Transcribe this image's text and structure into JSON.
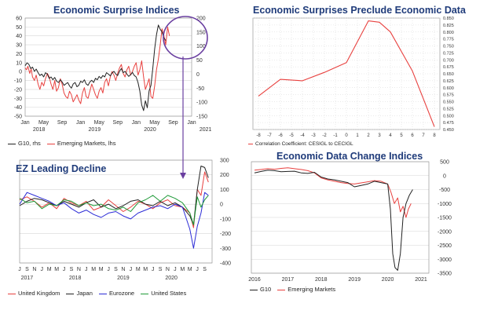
{
  "colors": {
    "title": "#1f3b7a",
    "red": "#e8413f",
    "black": "#222222",
    "blue": "#2b2bd6",
    "green": "#1f9a38",
    "purple": "#6a3fa0",
    "grid": "#d6d6d6"
  },
  "chart_data": [
    {
      "id": "p1",
      "type": "line",
      "title": "Economic Surprise Indices",
      "x_ticks": [
        "Jan",
        "May",
        "Sep",
        "Jan",
        "May",
        "Sep",
        "Jan",
        "May",
        "Sep",
        "Jan"
      ],
      "x_years": [
        "2018",
        "2019",
        "2020",
        "2021"
      ],
      "y_left_ticks": [
        60,
        50,
        40,
        30,
        20,
        10,
        0,
        -10,
        -20,
        -30,
        -40,
        -50
      ],
      "y_right_ticks": [
        200,
        150,
        100,
        50,
        0,
        -50,
        -100,
        -150
      ],
      "ylim_left": [
        -50,
        60
      ],
      "ylim_right": [
        -150,
        200
      ],
      "grid": true,
      "legend": [
        {
          "label": "G10, rhs",
          "color": "#222222"
        },
        {
          "label": "Emerging Markets, lhs",
          "color": "#e8413f"
        }
      ],
      "series": [
        {
          "name": "Emerging Markets, lhs",
          "axis": "left",
          "color": "#e8413f",
          "x": [
            0,
            0.3,
            0.6,
            1,
            1.3,
            1.6,
            2,
            2.4,
            2.8,
            3.2,
            3.6,
            4,
            4.4,
            4.8,
            5.2,
            5.6,
            6,
            6.4,
            6.8,
            7.2,
            7.6,
            8,
            8.4,
            8.8,
            9.2,
            9.6,
            10,
            10.4,
            10.8,
            11.2,
            11.6,
            12,
            12.4,
            12.8,
            13.2,
            13.6,
            14,
            14.4,
            14.8,
            15.2,
            15.6,
            16,
            16.4,
            16.8,
            17.2,
            17.6,
            18,
            18.4,
            18.8,
            19.2,
            19.6,
            20,
            20.4,
            20.8,
            21.2,
            21.6,
            22,
            22.4,
            22.8,
            23.2,
            23.6,
            24,
            24.4,
            24.8,
            25.2,
            25.6,
            26,
            26.4,
            26.8,
            27.2,
            27.6,
            28,
            28.4,
            28.8,
            29.2,
            29.6,
            30,
            30.4,
            30.8,
            31.2
          ],
          "y": [
            4,
            2,
            6,
            -2,
            3,
            -6,
            -10,
            -4,
            -14,
            -20,
            -12,
            -16,
            -8,
            -2,
            -6,
            -14,
            -20,
            -10,
            -22,
            -18,
            -8,
            -14,
            -24,
            -28,
            -30,
            -22,
            -26,
            -34,
            -30,
            -26,
            -32,
            -36,
            -24,
            -18,
            -28,
            -30,
            -22,
            -14,
            -20,
            -26,
            -30,
            -22,
            -18,
            -24,
            -12,
            -8,
            -16,
            -6,
            0,
            -4,
            -10,
            -2,
            4,
            8,
            -2,
            -6,
            2,
            6,
            -4,
            0,
            6,
            10,
            -4,
            2,
            12,
            -6,
            -20,
            -14,
            -8,
            -28,
            -30,
            -16,
            2,
            14,
            30,
            48,
            40,
            30,
            50,
            40
          ]
        },
        {
          "name": "G10, rhs",
          "axis": "right",
          "color": "#222222",
          "x": [
            0,
            0.4,
            0.8,
            1.2,
            1.6,
            2,
            2.4,
            2.8,
            3.2,
            3.6,
            4,
            4.4,
            4.8,
            5.2,
            5.6,
            6,
            6.4,
            6.8,
            7.2,
            7.6,
            8,
            8.4,
            8.8,
            9.2,
            9.6,
            10,
            10.4,
            10.8,
            11.2,
            11.6,
            12,
            12.4,
            12.8,
            13.2,
            13.6,
            14,
            14.4,
            14.8,
            15.2,
            15.6,
            16,
            16.4,
            16.8,
            17.2,
            17.6,
            18,
            18.4,
            18.8,
            19.2,
            19.6,
            20,
            20.4,
            20.8,
            21.2,
            21.6,
            22,
            22.4,
            22.8,
            23.2,
            23.6,
            24,
            24.4,
            24.8,
            25.2,
            25.6,
            26,
            26.4,
            26.8,
            27.2,
            27.6,
            28,
            28.4,
            28.8,
            29.2,
            29.6,
            30,
            30.4
          ],
          "y": [
            30,
            40,
            35,
            20,
            25,
            10,
            18,
            5,
            -5,
            0,
            -10,
            5,
            0,
            -15,
            -10,
            -20,
            -12,
            -25,
            -30,
            -20,
            -28,
            -40,
            -35,
            -30,
            -42,
            -50,
            -35,
            -30,
            -45,
            -40,
            -25,
            -30,
            -20,
            -35,
            -40,
            -28,
            -22,
            -30,
            -15,
            -20,
            -8,
            -15,
            -5,
            -10,
            5,
            0,
            -6,
            4,
            10,
            0,
            -5,
            10,
            20,
            5,
            10,
            0,
            -8,
            -2,
            6,
            -5,
            -10,
            -30,
            -60,
            -110,
            -130,
            -95,
            -120,
            -60,
            -40,
            20,
            90,
            140,
            175,
            160,
            150,
            130,
            120
          ]
        }
      ]
    },
    {
      "id": "p2",
      "type": "line",
      "title": "Economic Surprises Preclude Economic Data",
      "x_ticks": [
        "-8",
        "-7",
        "-6",
        "-5",
        "-4",
        "-3",
        "-2",
        "-1",
        "0",
        "1",
        "2",
        "3",
        "4",
        "5",
        "6",
        "7",
        "8"
      ],
      "y_ticks": [
        "0.850",
        "0.825",
        "0.800",
        "0.775",
        "0.750",
        "0.725",
        "0.700",
        "0.675",
        "0.650",
        "0.625",
        "0.600",
        "0.575",
        "0.550",
        "0.525",
        "0.500",
        "0.475",
        "0.450"
      ],
      "ylim": [
        0.45,
        0.85
      ],
      "grid": false,
      "legend": [
        {
          "label": "Correlation Coefficient: CESIGL to CECIGL",
          "color": "#e8413f"
        }
      ],
      "series": [
        {
          "name": "Correlation Coefficient: CESIGL to CECIGL",
          "color": "#e8413f",
          "x": [
            -8,
            -6,
            -4,
            -2,
            0,
            2,
            3,
            4,
            6,
            8
          ],
          "y": [
            0.57,
            0.63,
            0.625,
            0.655,
            0.69,
            0.84,
            0.835,
            0.8,
            0.66,
            0.46
          ]
        }
      ]
    },
    {
      "id": "p3",
      "type": "line",
      "title": "EZ Leading Decline",
      "x_ticks": [
        "J",
        "S",
        "N",
        "J",
        "M",
        "M",
        "J",
        "S",
        "N",
        "J",
        "M",
        "M",
        "J",
        "S",
        "N",
        "J",
        "M",
        "M",
        "J",
        "S",
        "N",
        "J",
        "M",
        "M",
        "J",
        "S"
      ],
      "x_years": [
        "2017",
        "2018",
        "2019",
        "2020"
      ],
      "y_ticks": [
        300,
        200,
        100,
        0,
        -100,
        -200,
        -300,
        -400
      ],
      "ylim": [
        -400,
        300
      ],
      "grid": true,
      "legend": [
        {
          "label": "United Kingdom",
          "color": "#e8413f"
        },
        {
          "label": "Japan",
          "color": "#222222"
        },
        {
          "label": "Eurozone",
          "color": "#2b2bd6"
        },
        {
          "label": "United States",
          "color": "#1f9a38"
        }
      ],
      "series": [
        {
          "name": "United Kingdom",
          "color": "#e8413f",
          "x": [
            0,
            1,
            2,
            3,
            4,
            5,
            6,
            7,
            8,
            9,
            10,
            11,
            12,
            13,
            14,
            15,
            16,
            17,
            18,
            19,
            20,
            21,
            22,
            23,
            23.5,
            24,
            24.5,
            25,
            25.5
          ],
          "y": [
            30,
            50,
            20,
            -20,
            10,
            -30,
            40,
            10,
            -10,
            20,
            -40,
            -20,
            30,
            -10,
            -50,
            -20,
            20,
            0,
            -30,
            10,
            30,
            -10,
            -20,
            -60,
            -160,
            100,
            60,
            220,
            150
          ]
        },
        {
          "name": "Japan",
          "color": "#222222",
          "x": [
            0,
            1,
            2,
            3,
            4,
            5,
            6,
            7,
            8,
            9,
            10,
            11,
            12,
            13,
            14,
            15,
            16,
            17,
            18,
            19,
            20,
            21,
            22,
            23,
            23.5,
            24,
            24.5,
            25,
            25.5
          ],
          "y": [
            -10,
            20,
            40,
            30,
            10,
            -10,
            20,
            0,
            -20,
            10,
            30,
            -20,
            0,
            -30,
            -10,
            20,
            30,
            0,
            -10,
            20,
            -10,
            10,
            -20,
            -80,
            -140,
            100,
            260,
            250,
            180
          ]
        },
        {
          "name": "Eurozone",
          "color": "#2b2bd6",
          "x": [
            0,
            1,
            2,
            3,
            4,
            5,
            6,
            7,
            8,
            9,
            10,
            11,
            12,
            13,
            14,
            15,
            16,
            17,
            18,
            19,
            20,
            21,
            22,
            23,
            23.5,
            24,
            24.5,
            25,
            25.5
          ],
          "y": [
            0,
            80,
            60,
            40,
            20,
            -10,
            10,
            -30,
            -60,
            -40,
            -70,
            -90,
            -60,
            -50,
            -80,
            -100,
            -60,
            -40,
            -20,
            -10,
            -30,
            0,
            -20,
            -170,
            -300,
            -150,
            -60,
            80,
            60
          ]
        },
        {
          "name": "United States",
          "color": "#1f9a38",
          "x": [
            0,
            1,
            2,
            3,
            4,
            5,
            6,
            7,
            8,
            9,
            10,
            11,
            12,
            13,
            14,
            15,
            16,
            17,
            18,
            19,
            20,
            21,
            22,
            23,
            23.5,
            24,
            24.5,
            25,
            25.5
          ],
          "y": [
            40,
            10,
            20,
            -30,
            0,
            -10,
            30,
            20,
            -10,
            10,
            -10,
            0,
            -30,
            -40,
            -20,
            -50,
            10,
            30,
            60,
            20,
            60,
            40,
            10,
            -60,
            -140,
            50,
            -20,
            30,
            60
          ]
        }
      ]
    },
    {
      "id": "p4",
      "type": "line",
      "title": "Economic Data Change Indices",
      "x_ticks": [
        "2016",
        "2017",
        "2018",
        "2019",
        "2020",
        "2021"
      ],
      "y_ticks": [
        500,
        0,
        -500,
        -1000,
        -1500,
        -2000,
        -2500,
        -3000,
        -3500
      ],
      "ylim": [
        -3500,
        500
      ],
      "grid": true,
      "legend": [
        {
          "label": "G10",
          "color": "#222222"
        },
        {
          "label": "Emerging Markets",
          "color": "#e8413f"
        }
      ],
      "series": [
        {
          "name": "G10",
          "color": "#222222",
          "x": [
            2016.0,
            2016.2,
            2016.4,
            2016.6,
            2016.8,
            2017.0,
            2017.2,
            2017.4,
            2017.6,
            2017.8,
            2018.0,
            2018.2,
            2018.4,
            2018.6,
            2018.8,
            2019.0,
            2019.2,
            2019.4,
            2019.6,
            2019.8,
            2020.0,
            2020.08,
            2020.15,
            2020.22,
            2020.3,
            2020.38,
            2020.46,
            2020.55,
            2020.65,
            2020.75
          ],
          "y": [
            100,
            150,
            200,
            180,
            140,
            150,
            160,
            100,
            80,
            120,
            -50,
            -120,
            -150,
            -200,
            -250,
            -400,
            -350,
            -300,
            -200,
            -250,
            -300,
            -1200,
            -2800,
            -3300,
            -3400,
            -2800,
            -1500,
            -1000,
            -700,
            -500
          ]
        },
        {
          "name": "Emerging Markets",
          "color": "#e8413f",
          "x": [
            2016.0,
            2016.2,
            2016.4,
            2016.6,
            2016.8,
            2017.0,
            2017.2,
            2017.4,
            2017.6,
            2017.8,
            2018.0,
            2018.2,
            2018.4,
            2018.6,
            2018.8,
            2019.0,
            2019.2,
            2019.4,
            2019.6,
            2019.8,
            2020.0,
            2020.1,
            2020.2,
            2020.3,
            2020.38,
            2020.46,
            2020.55,
            2020.62,
            2020.7
          ],
          "y": [
            200,
            220,
            250,
            230,
            260,
            280,
            250,
            220,
            180,
            100,
            -80,
            -150,
            -200,
            -250,
            -280,
            -300,
            -260,
            -220,
            -180,
            -200,
            -300,
            -600,
            -1000,
            -800,
            -1300,
            -1100,
            -1500,
            -1200,
            -1000
          ]
        }
      ]
    }
  ]
}
